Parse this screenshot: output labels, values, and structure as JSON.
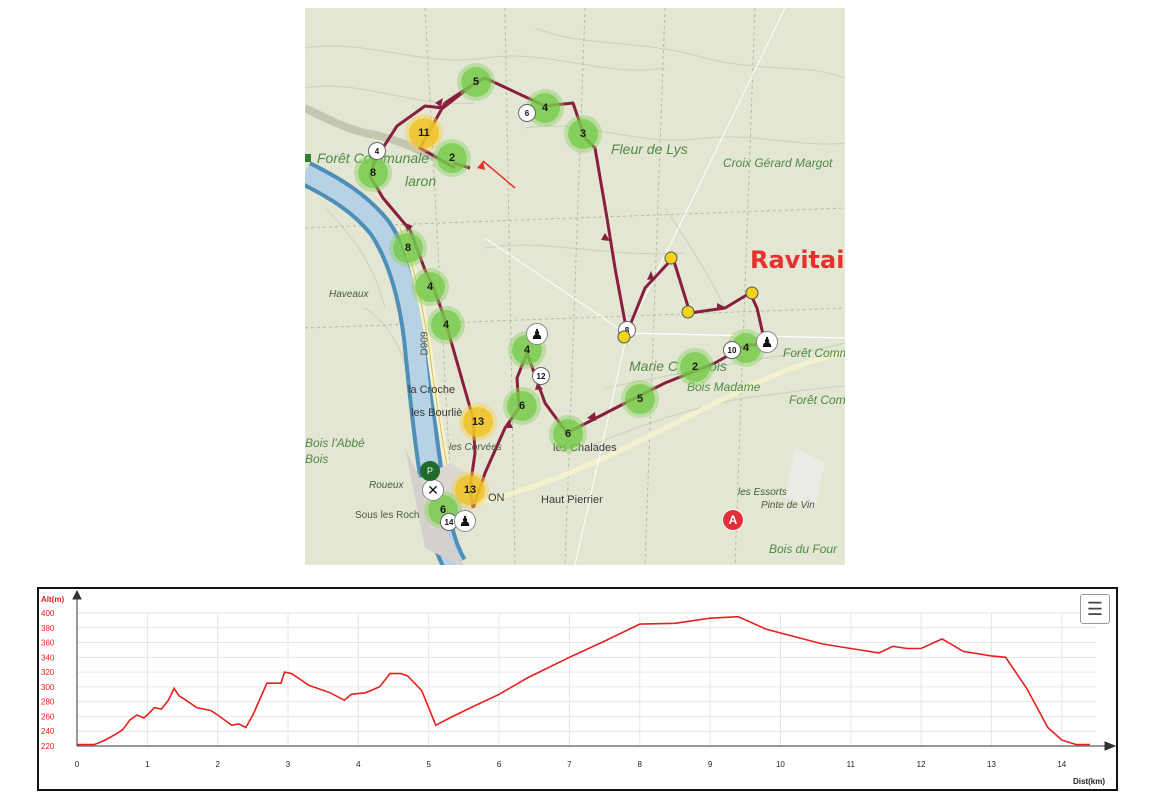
{
  "annotation": "Ravitaillement",
  "places": [
    {
      "id": "foret-communale-1",
      "text": "Forêt Communale",
      "cls": "green"
    },
    {
      "id": "foret-communale-2",
      "text": "laron",
      "cls": "green"
    },
    {
      "id": "fleur-de-lys",
      "text": "Fleur de Lys",
      "cls": "green"
    },
    {
      "id": "croix-gerard",
      "text": "Croix Gérard Margot",
      "cls": "green-sm"
    },
    {
      "id": "haveaux",
      "text": "Haveaux",
      "cls": "it"
    },
    {
      "id": "d909",
      "text": "D909",
      "cls": ""
    },
    {
      "id": "la-croche",
      "text": "la Croche",
      "cls": "dark"
    },
    {
      "id": "les-bourlie",
      "text": "les Bourliè",
      "cls": "dark"
    },
    {
      "id": "bois-abbe",
      "text": "Bois l'Abbé",
      "cls": "green-sm"
    },
    {
      "id": "bois",
      "text": "Bois",
      "cls": "green-sm"
    },
    {
      "id": "les-corvees",
      "text": "les Corvées",
      "cls": "it"
    },
    {
      "id": "roueux",
      "text": "Roueux",
      "cls": "it"
    },
    {
      "id": "sous-les-roch",
      "text": "Sous les Roch",
      "cls": ""
    },
    {
      "id": "on",
      "text": "ON",
      "cls": "dark"
    },
    {
      "id": "haut-pierrier",
      "text": "Haut Pierrier",
      "cls": "dark"
    },
    {
      "id": "les-chalades",
      "text": "les Chalades",
      "cls": "dark"
    },
    {
      "id": "marie-c",
      "text": "Marie C",
      "cls": "green"
    },
    {
      "id": "ois",
      "text": "ois",
      "cls": "green"
    },
    {
      "id": "bois-madame",
      "text": "Bois Madame",
      "cls": "green-sm"
    },
    {
      "id": "foret-comm-1",
      "text": "Forêt Comm",
      "cls": "green-sm"
    },
    {
      "id": "foret-com-2",
      "text": "Forêt Com",
      "cls": "green-sm"
    },
    {
      "id": "les-essorts",
      "text": "les Essorts",
      "cls": "it"
    },
    {
      "id": "pinte-de-vin",
      "text": "Pinte de Vin",
      "cls": "it"
    },
    {
      "id": "bois-du-four",
      "text": "Bois du Four",
      "cls": "green-sm"
    }
  ],
  "cluster_markers": [
    {
      "label": "5",
      "color": "green"
    },
    {
      "label": "4",
      "color": "green"
    },
    {
      "label": "3",
      "color": "green"
    },
    {
      "label": "11",
      "color": "yellow"
    },
    {
      "label": "2",
      "color": "green"
    },
    {
      "label": "8",
      "color": "green"
    },
    {
      "label": "8",
      "color": "green"
    },
    {
      "label": "4",
      "color": "green"
    },
    {
      "label": "4",
      "color": "green"
    },
    {
      "label": "4",
      "color": "green"
    },
    {
      "label": "13",
      "color": "yellow"
    },
    {
      "label": "6",
      "color": "green"
    },
    {
      "label": "6",
      "color": "green"
    },
    {
      "label": "5",
      "color": "green"
    },
    {
      "label": "2",
      "color": "green"
    },
    {
      "label": "4",
      "color": "green"
    },
    {
      "label": "13",
      "color": "yellow"
    },
    {
      "label": "6",
      "color": "green"
    }
  ],
  "km_badges": [
    "6",
    "4",
    "12",
    "10",
    "8",
    "14"
  ],
  "start_marker": "A",
  "profile": {
    "y_axis_title": "Alt(m)",
    "x_axis_title": "Dist(km)",
    "menu_icon": "☰",
    "colors": {
      "line": "#e8201c",
      "axis_text": "#e8201c",
      "grid": "#e6e6e6"
    }
  },
  "chart_data": {
    "type": "line",
    "title": "",
    "xlabel": "Dist(km)",
    "ylabel": "Alt(m)",
    "xlim": [
      0,
      14.5
    ],
    "ylim": [
      220,
      400
    ],
    "x_ticks": [
      "0",
      "1",
      "2",
      "3",
      "4",
      "5",
      "6",
      "7",
      "8",
      "9",
      "10",
      "11",
      "12",
      "13",
      "14"
    ],
    "y_ticks": [
      "220",
      "240",
      "260",
      "280",
      "300",
      "320",
      "340",
      "360",
      "380",
      "400"
    ],
    "x": [
      0,
      0.25,
      0.4,
      0.55,
      0.65,
      0.75,
      0.85,
      0.95,
      1.0,
      1.1,
      1.2,
      1.3,
      1.38,
      1.45,
      1.55,
      1.7,
      1.9,
      2.0,
      2.1,
      2.2,
      2.3,
      2.4,
      2.5,
      2.7,
      2.8,
      2.9,
      2.95,
      3.05,
      3.3,
      3.6,
      3.8,
      3.9,
      4.1,
      4.3,
      4.45,
      4.6,
      4.7,
      4.9,
      5.1,
      5.3,
      5.6,
      6.0,
      6.4,
      7.0,
      7.5,
      8.0,
      8.5,
      9.0,
      9.4,
      9.8,
      10.2,
      10.6,
      11.0,
      11.4,
      11.6,
      11.8,
      12.0,
      12.3,
      12.6,
      13.0,
      13.2,
      13.5,
      13.8,
      14.0,
      14.2,
      14.4
    ],
    "y": [
      222,
      222,
      228,
      236,
      242,
      255,
      262,
      258,
      262,
      272,
      270,
      282,
      298,
      288,
      282,
      272,
      268,
      262,
      255,
      248,
      250,
      245,
      262,
      305,
      305,
      305,
      320,
      318,
      302,
      292,
      282,
      290,
      292,
      300,
      318,
      318,
      315,
      295,
      248,
      258,
      272,
      290,
      312,
      340,
      362,
      385,
      386,
      393,
      395,
      378,
      368,
      358,
      352,
      346,
      355,
      352,
      352,
      365,
      348,
      342,
      340,
      298,
      245,
      228,
      222,
      222
    ]
  }
}
